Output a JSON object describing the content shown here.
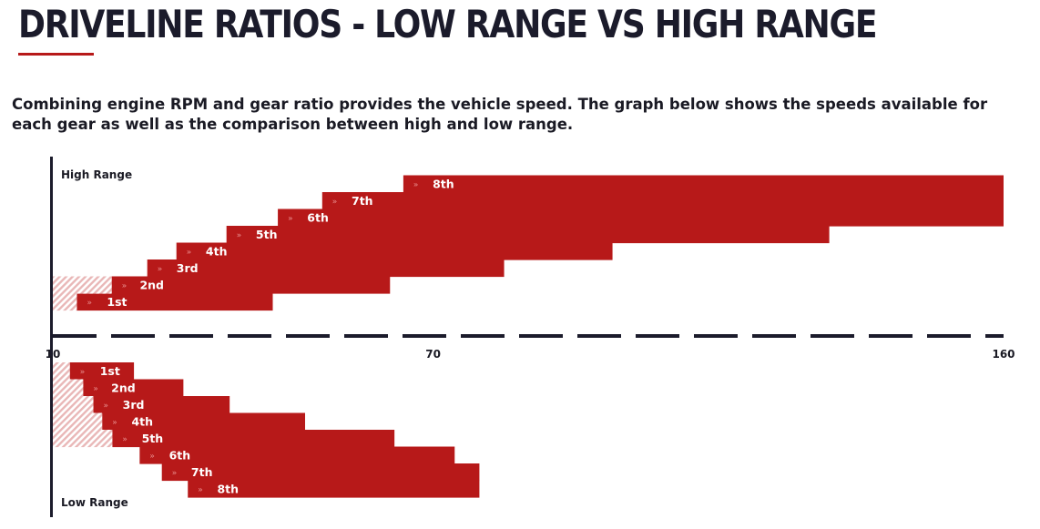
{
  "header": {
    "title": "DRIVELINE RATIOS - LOW RANGE VS HIGH RANGE",
    "description": "Combining engine RPM and gear ratio provides the vehicle speed. The graph below shows the speeds available for each gear as well as the comparison between high and low range."
  },
  "colors": {
    "bar": "#b71919",
    "axis": "#1b1b2b",
    "hatch": "#e9b7b7"
  },
  "chart_data": {
    "type": "bar",
    "orientation": "horizontal-range",
    "x_ticks": [
      10,
      70,
      160
    ],
    "xlim": [
      10,
      160
    ],
    "series": [
      {
        "name": "High Range",
        "gears": [
          {
            "label": "1st",
            "hatch_start": 10,
            "min": 13.8,
            "max": 44.7
          },
          {
            "label": "2nd",
            "hatch_start": 10,
            "min": 19.3,
            "max": 63.2
          },
          {
            "label": "3rd",
            "min": 24.9,
            "max": 81.2
          },
          {
            "label": "4th",
            "min": 29.5,
            "max": 98.3
          },
          {
            "label": "5th",
            "min": 37.4,
            "max": 132.5
          },
          {
            "label": "6th",
            "min": 45.5,
            "max": 160
          },
          {
            "label": "7th",
            "min": 52.5,
            "max": 160
          },
          {
            "label": "8th",
            "min": 65.3,
            "max": 160
          }
        ]
      },
      {
        "name": "Low Range",
        "gears": [
          {
            "label": "1st",
            "hatch_start": 10,
            "min": 12.7,
            "max": 22.8
          },
          {
            "label": "2nd",
            "hatch_start": 10,
            "min": 14.8,
            "max": 30.6
          },
          {
            "label": "3rd",
            "hatch_start": 10,
            "min": 16.4,
            "max": 37.9
          },
          {
            "label": "4th",
            "hatch_start": 10,
            "min": 17.8,
            "max": 49.8
          },
          {
            "label": "5th",
            "hatch_start": 10,
            "min": 19.4,
            "max": 63.9
          },
          {
            "label": "6th",
            "min": 23.7,
            "max": 73.4
          },
          {
            "label": "7th",
            "min": 27.2,
            "max": 77.3
          },
          {
            "label": "8th",
            "min": 31.3,
            "max": 77.3
          }
        ]
      }
    ]
  }
}
